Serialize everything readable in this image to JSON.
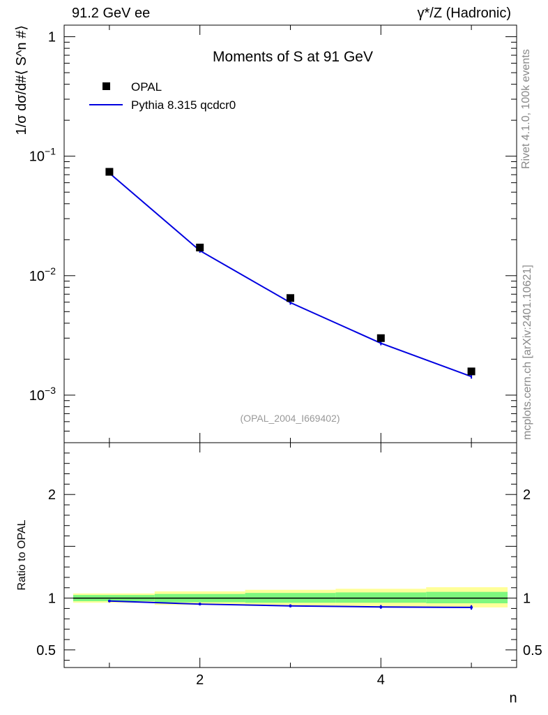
{
  "header": {
    "left": "91.2 GeV ee",
    "right": "γ*/Z (Hadronic)"
  },
  "side_labels": {
    "rivet": "Rivet 4.1.0,  100k events",
    "mcplots": "mcplots.cern.ch [arXiv:2401.10621]"
  },
  "colors": {
    "mc": "#0000e0",
    "data": "#000000",
    "band_inner": "#7ef77e",
    "band_outer": "#ffff99",
    "watermark": "#999999"
  },
  "chart_data": [
    {
      "type": "line",
      "title": "Moments of S at 91 GeV",
      "ylabel": "1/σ  dσ/d#⟨ S^n #⟩",
      "xlabel": "",
      "yscale": "log",
      "xlim": [
        0.5,
        5.5
      ],
      "ylim": [
        0.0004,
        1.25
      ],
      "yticks": [
        {
          "value": 1,
          "label": "1"
        },
        {
          "value": 0.1,
          "label": "10",
          "exp": "−1"
        },
        {
          "value": 0.01,
          "label": "10",
          "exp": "−2"
        },
        {
          "value": 0.001,
          "label": "10",
          "exp": "−3"
        }
      ],
      "watermark": "(OPAL_2004_I669402)",
      "legend": {
        "position": "top-left",
        "entries": [
          "OPAL",
          "Pythia 8.315 qcdcr0"
        ]
      },
      "x": [
        1,
        2,
        3,
        4,
        5
      ],
      "series": [
        {
          "name": "OPAL",
          "style": "markers",
          "values": [
            0.074,
            0.0172,
            0.0065,
            0.003,
            0.00158
          ]
        },
        {
          "name": "Pythia 8.315 qcdcr0",
          "style": "line",
          "values": [
            0.0722,
            0.0162,
            0.00595,
            0.00272,
            0.00143
          ]
        }
      ]
    },
    {
      "type": "line",
      "title": "",
      "ylabel": "Ratio to OPAL",
      "xlabel": "n",
      "xlim": [
        0.5,
        5.5
      ],
      "ylim": [
        0.33,
        2.5
      ],
      "xticks": [
        {
          "value": 2,
          "label": "2"
        },
        {
          "value": 4,
          "label": "4"
        }
      ],
      "yticks": [
        {
          "value": 0.5,
          "label": "0.5"
        },
        {
          "value": 1,
          "label": "1"
        },
        {
          "value": 2,
          "label": "2"
        }
      ],
      "bands": {
        "inner": [
          [
            0.97,
            1.03
          ],
          [
            0.96,
            1.04
          ],
          [
            0.955,
            1.05
          ],
          [
            0.955,
            1.055
          ],
          [
            0.95,
            1.06
          ]
        ],
        "outer": [
          [
            0.955,
            1.045
          ],
          [
            0.935,
            1.065
          ],
          [
            0.925,
            1.08
          ],
          [
            0.92,
            1.09
          ],
          [
            0.91,
            1.105
          ]
        ]
      },
      "x": [
        1,
        2,
        3,
        4,
        5
      ],
      "series": [
        {
          "name": "Pythia 8.315 qcdcr0",
          "values": [
            0.972,
            0.942,
            0.925,
            0.915,
            0.91
          ],
          "errors": [
            0.005,
            0.012,
            0.015,
            0.018,
            0.022
          ]
        }
      ]
    }
  ]
}
